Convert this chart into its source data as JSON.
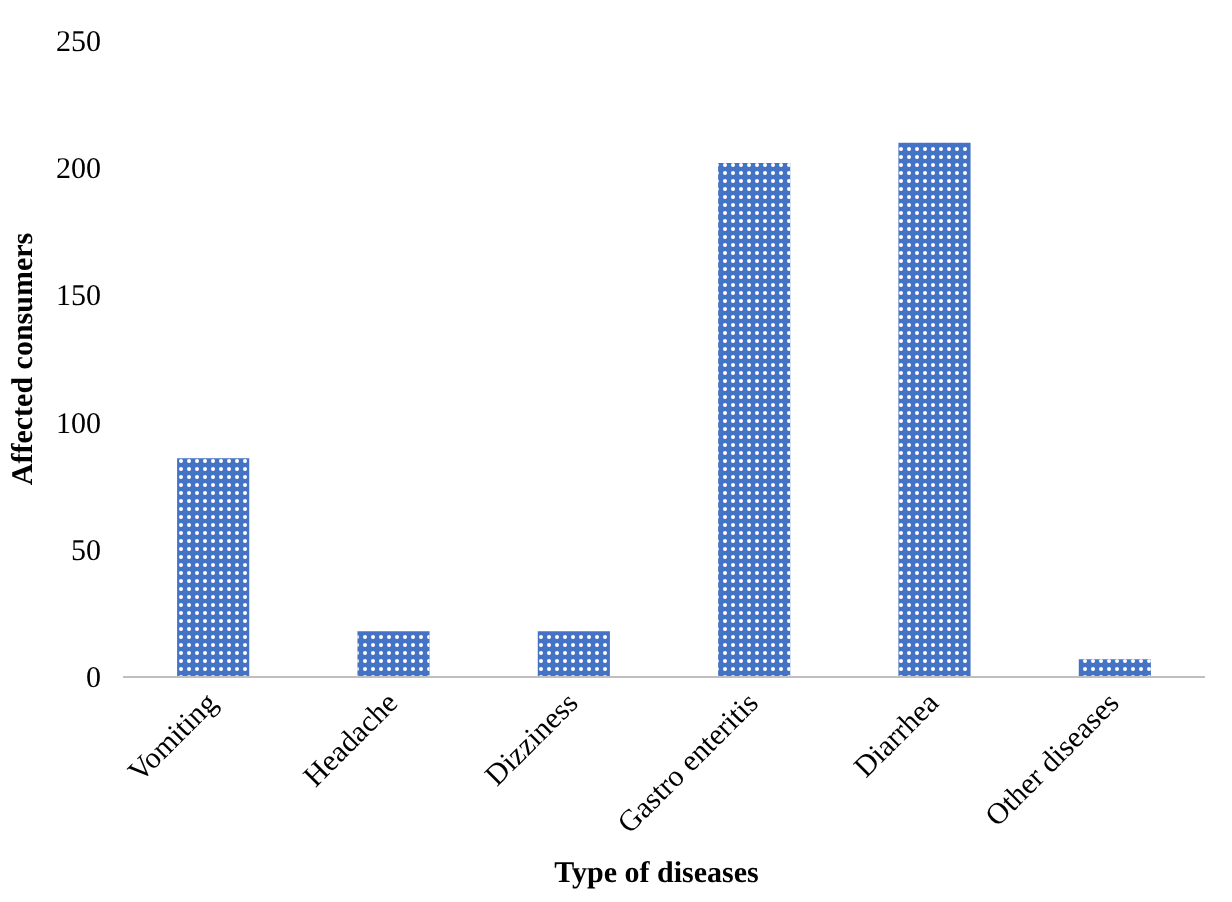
{
  "chart_data": {
    "type": "bar",
    "xlabel": "Type  of  diseases",
    "ylabel": "Affected consumers",
    "categories": [
      "Vomiting",
      "Headache",
      "Dizziness",
      "Gastro enteritis",
      "Diarrhea",
      "Other diseases"
    ],
    "values": [
      86,
      18,
      18,
      202,
      210,
      7
    ],
    "color": "#4472c4",
    "ylim": [
      0,
      250
    ],
    "yticks": [
      0,
      50,
      100,
      150,
      200,
      250
    ],
    "grid": false
  }
}
